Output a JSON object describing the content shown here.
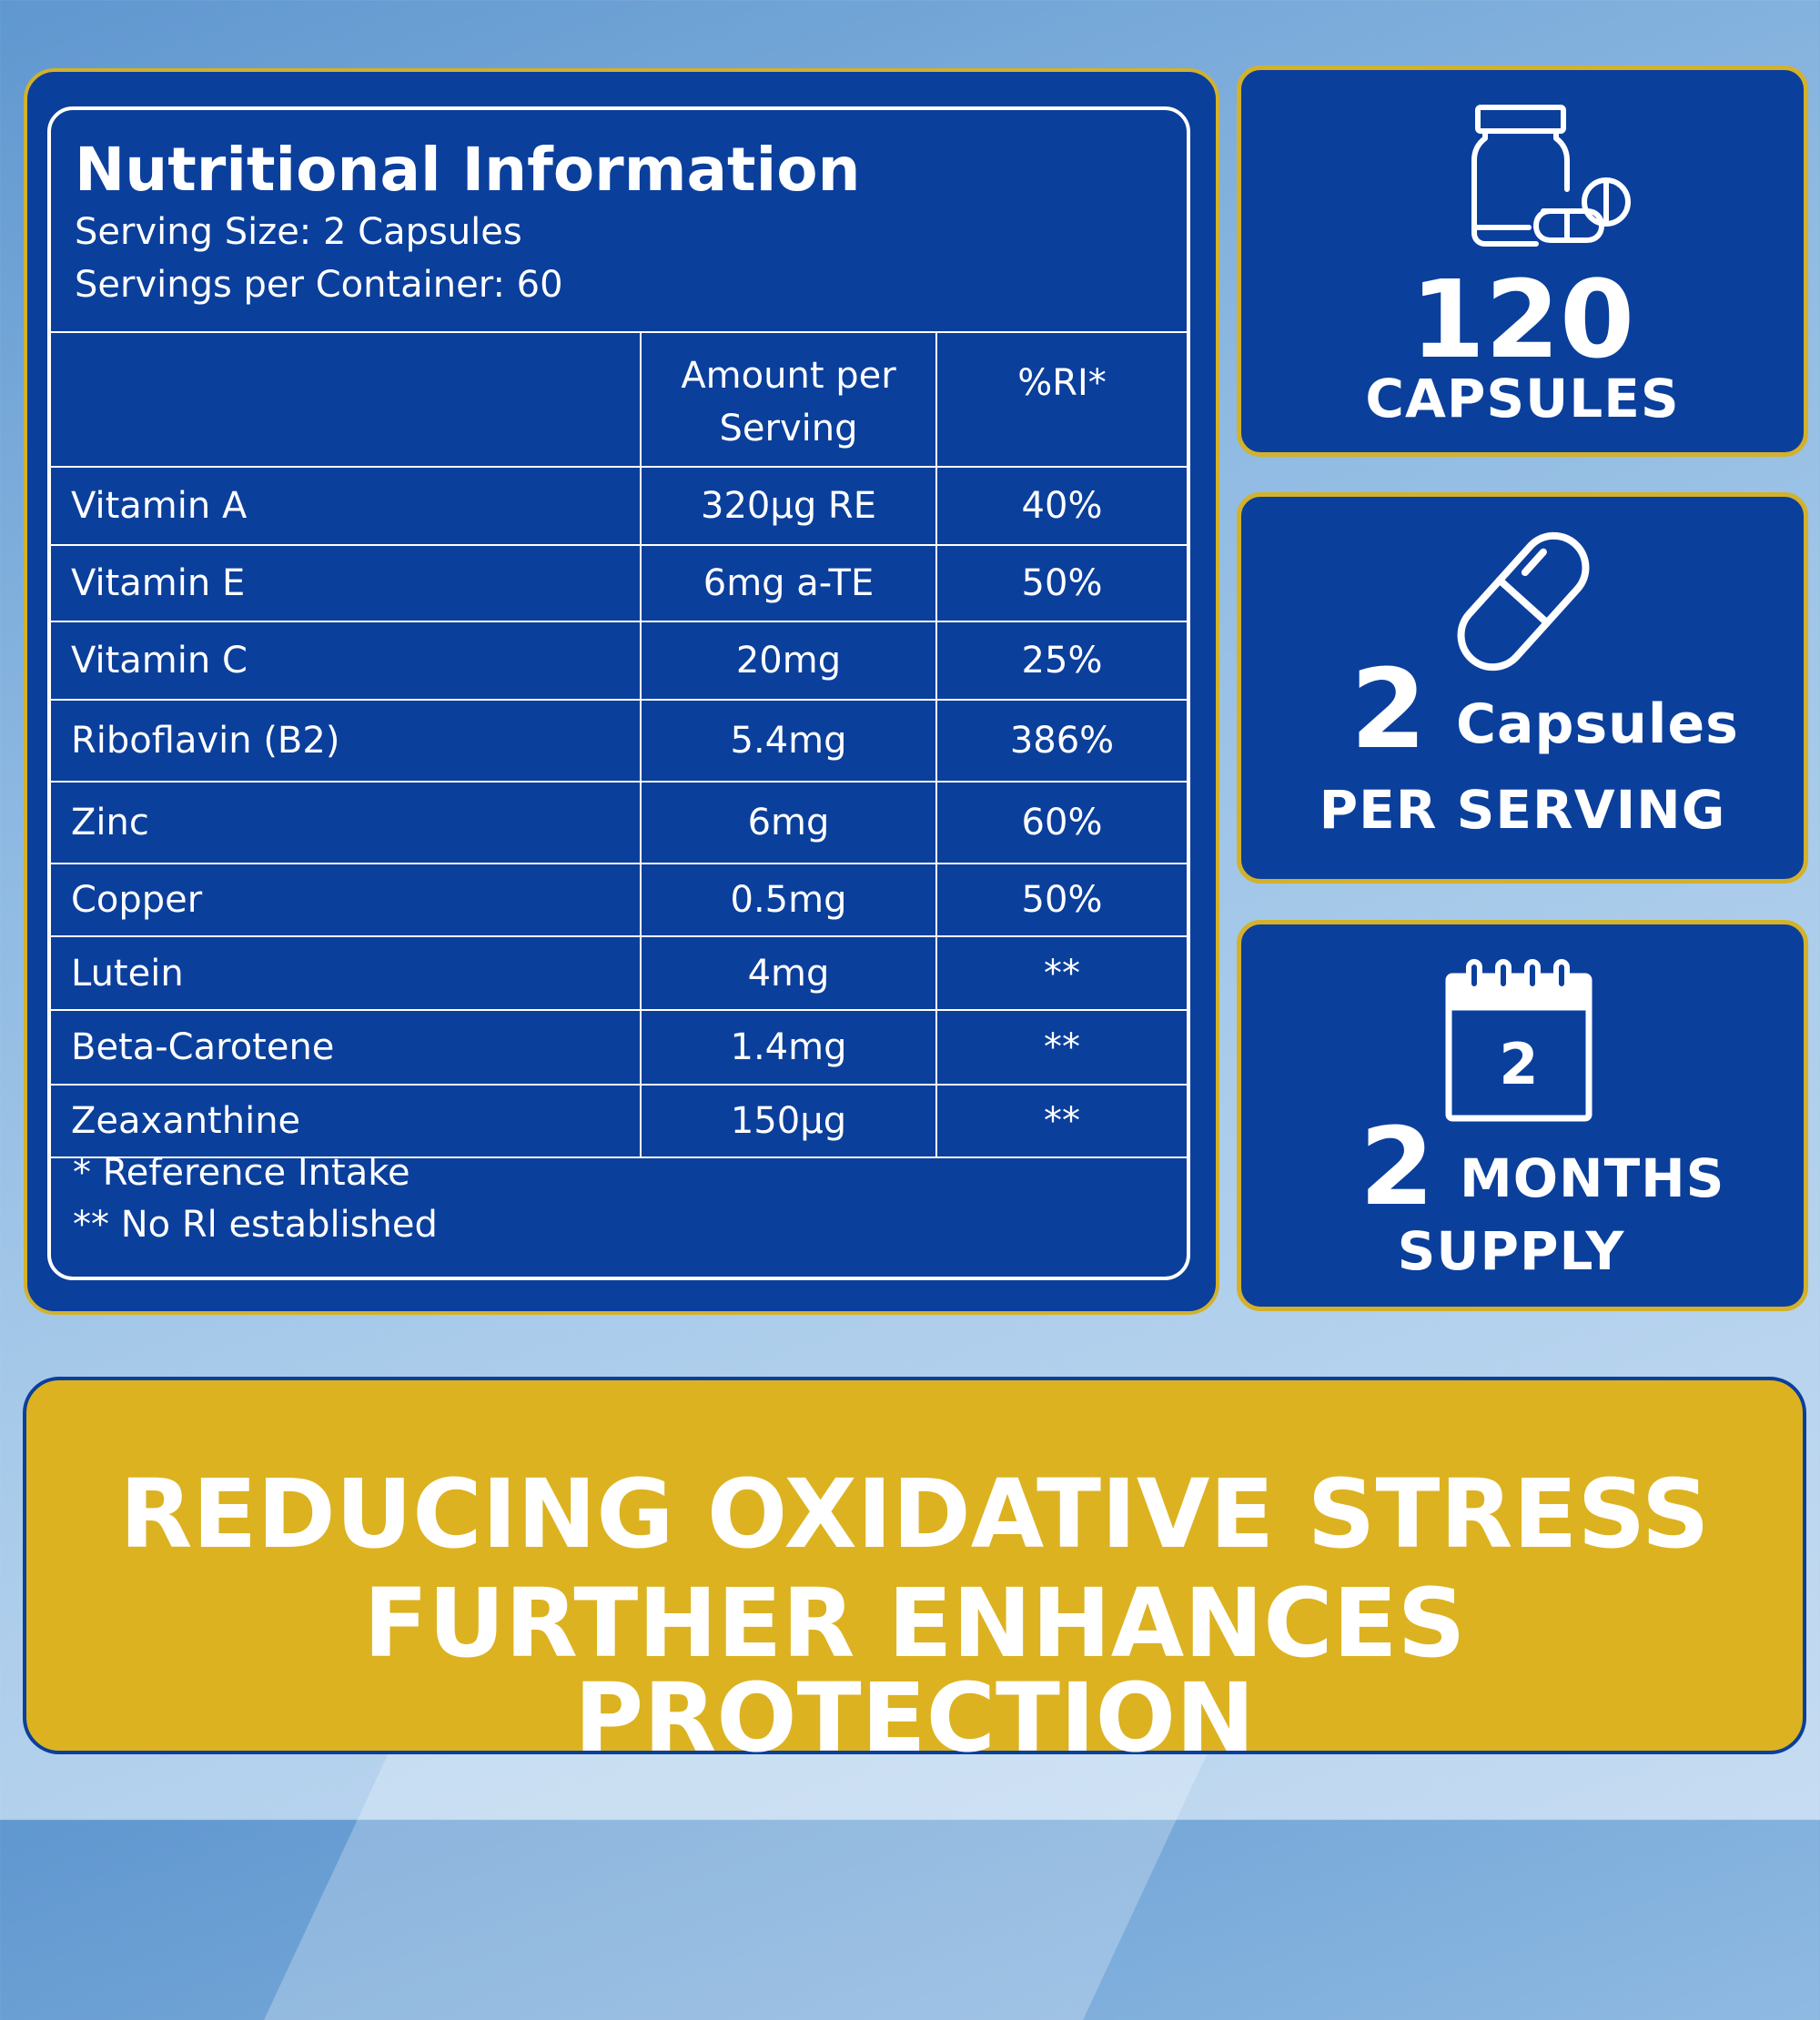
{
  "nutrition": {
    "title": "Nutritional Information",
    "serving_size": "Serving Size: 2 Capsules",
    "servings_per_container": "Servings per Container: 60",
    "header": {
      "nutrient": "",
      "amount_line1": "Amount per",
      "amount_line2": "Serving",
      "ri": "%RI*"
    },
    "rows": [
      {
        "name": "Vitamin A",
        "amount": "320µg RE",
        "ri": "40%"
      },
      {
        "name": "Vitamin E",
        "amount": "6mg a-TE",
        "ri": "50%"
      },
      {
        "name": "Vitamin C",
        "amount": "20mg",
        "ri": "25%"
      },
      {
        "name": "Riboflavin (B2)",
        "amount": "5.4mg",
        "ri": "386%"
      },
      {
        "name": "Zinc",
        "amount": "6mg",
        "ri": "60%"
      },
      {
        "name": "Copper",
        "amount": "0.5mg",
        "ri": "50%"
      },
      {
        "name": "Lutein",
        "amount": "4mg",
        "ri": "**"
      },
      {
        "name": "Beta-Carotene",
        "amount": "1.4mg",
        "ri": "**"
      },
      {
        "name": "Zeaxanthine",
        "amount": "150µg",
        "ri": "**"
      }
    ],
    "footnote_1": "* Reference Intake",
    "footnote_2": "** No Rl established"
  },
  "cards": {
    "capsules_count": {
      "number": "120",
      "label": "CAPSULES",
      "icon": "pill-bottle-icon"
    },
    "per_serving": {
      "number": "2",
      "word": "Capsules",
      "label": "PER SERVING",
      "icon": "capsule-icon"
    },
    "supply": {
      "calendar_number": "2",
      "number": "2",
      "word": "MONTHS",
      "label": "SUPPLY",
      "icon": "calendar-icon"
    }
  },
  "banner": {
    "line1": "REDUCING OXIDATIVE STRESS",
    "line2": "FURTHER ENHANCES PROTECTION"
  },
  "colors": {
    "navy": "#0b3f9c",
    "gold": "#dcb221",
    "white": "#ffffff"
  }
}
